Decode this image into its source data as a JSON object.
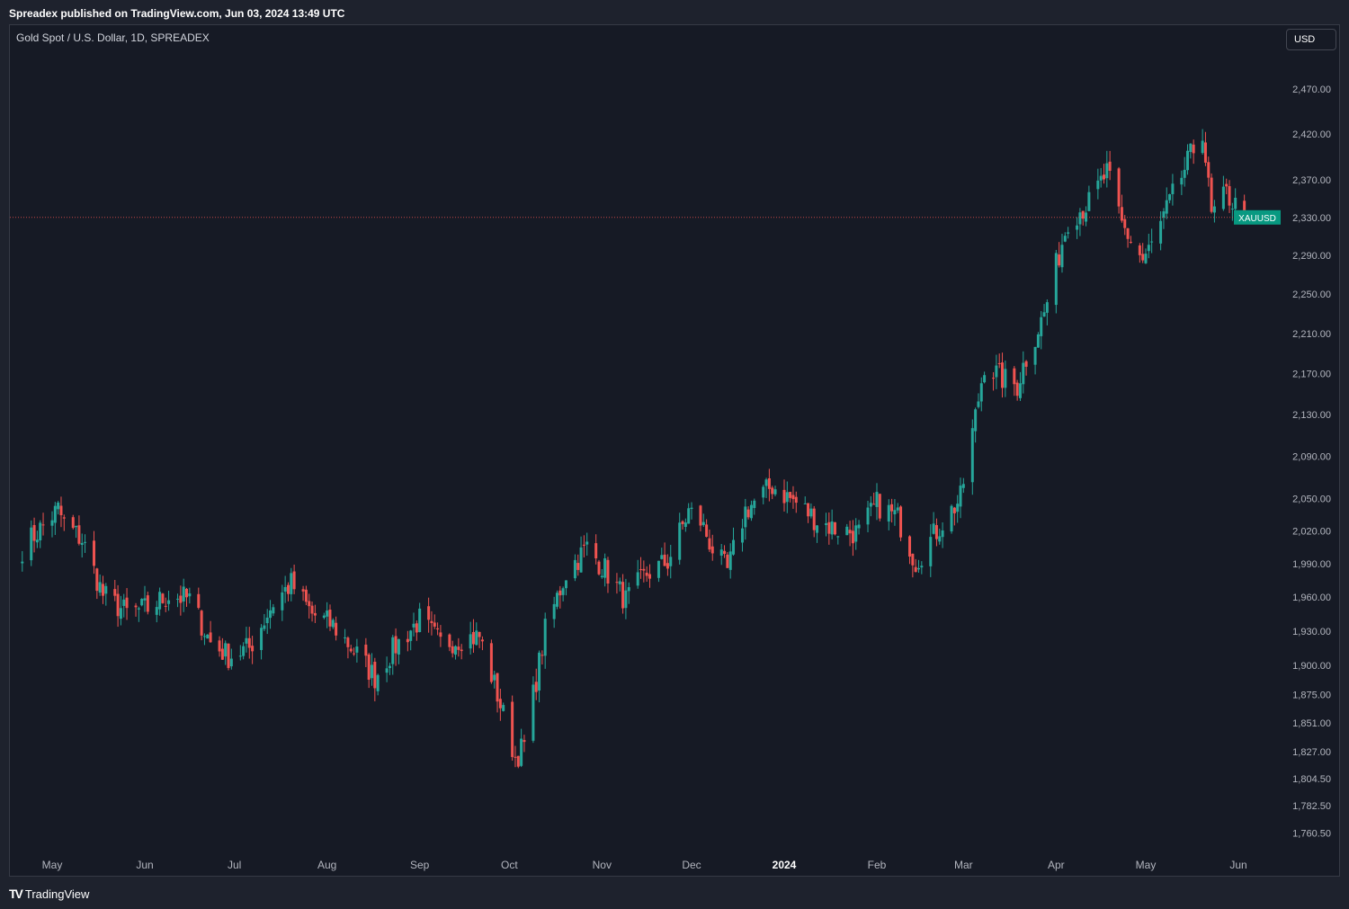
{
  "header": {
    "published_text": "Spreadex published on TradingView.com, Jun 03, 2024 13:49 UTC"
  },
  "symbol_title": "Gold Spot / U.S. Dollar, 1D, SPREADEX",
  "currency_button": "USD",
  "footer": {
    "logo_icon": "TV",
    "logo_text": "TradingView"
  },
  "colors": {
    "up": "#26a69a",
    "down": "#ef5350",
    "tag_bg": "#089981",
    "current_line": "#ef5350"
  },
  "chart_data": {
    "type": "candlestick",
    "symbol": "XAUUSD",
    "current_price": 2330,
    "y_scale": "log",
    "ylim": [
      1745,
      2510
    ],
    "y_ticks": [
      {
        "value": 2470,
        "label": "2,470.00"
      },
      {
        "value": 2420,
        "label": "2,420.00"
      },
      {
        "value": 2370,
        "label": "2,370.00"
      },
      {
        "value": 2330,
        "label": "2,330.00"
      },
      {
        "value": 2290,
        "label": "2,290.00"
      },
      {
        "value": 2250,
        "label": "2,250.00"
      },
      {
        "value": 2210,
        "label": "2,210.00"
      },
      {
        "value": 2170,
        "label": "2,170.00"
      },
      {
        "value": 2130,
        "label": "2,130.00"
      },
      {
        "value": 2090,
        "label": "2,090.00"
      },
      {
        "value": 2050,
        "label": "2,050.00"
      },
      {
        "value": 2020,
        "label": "2,020.00"
      },
      {
        "value": 1990,
        "label": "1,990.00"
      },
      {
        "value": 1960,
        "label": "1,960.00"
      },
      {
        "value": 1930,
        "label": "1,930.00"
      },
      {
        "value": 1900,
        "label": "1,900.00"
      },
      {
        "value": 1875,
        "label": "1,875.00"
      },
      {
        "value": 1851,
        "label": "1,851.00"
      },
      {
        "value": 1827,
        "label": "1,827.00"
      },
      {
        "value": 1804.5,
        "label": "1,804.50"
      },
      {
        "value": 1782.5,
        "label": "1,782.50"
      },
      {
        "value": 1760.5,
        "label": "1,760.50"
      }
    ],
    "x_labels": [
      {
        "label": "May",
        "date": "2023-05-01"
      },
      {
        "label": "Jun",
        "date": "2023-06-01"
      },
      {
        "label": "Jul",
        "date": "2023-07-01"
      },
      {
        "label": "Aug",
        "date": "2023-08-01"
      },
      {
        "label": "Sep",
        "date": "2023-09-01"
      },
      {
        "label": "Oct",
        "date": "2023-10-01"
      },
      {
        "label": "Nov",
        "date": "2023-11-01"
      },
      {
        "label": "Dec",
        "date": "2023-12-01"
      },
      {
        "label": "2024",
        "date": "2024-01-01",
        "bold": true
      },
      {
        "label": "Feb",
        "date": "2024-02-01"
      },
      {
        "label": "Mar",
        "date": "2024-03-01"
      },
      {
        "label": "Apr",
        "date": "2024-04-01"
      },
      {
        "label": "May",
        "date": "2024-05-01"
      },
      {
        "label": "Jun",
        "date": "2024-06-01"
      }
    ],
    "anchors": [
      [
        "2023-04-21",
        2004
      ],
      [
        "2023-05-03",
        2040
      ],
      [
        "2023-05-05",
        2027
      ],
      [
        "2023-05-11",
        2012
      ],
      [
        "2023-05-18",
        1962
      ],
      [
        "2023-05-26",
        1946
      ],
      [
        "2023-06-02",
        1950
      ],
      [
        "2023-06-09",
        1962
      ],
      [
        "2023-06-16",
        1958
      ],
      [
        "2023-06-23",
        1920
      ],
      [
        "2023-06-29",
        1908
      ],
      [
        "2023-07-06",
        1915
      ],
      [
        "2023-07-14",
        1955
      ],
      [
        "2023-07-20",
        1972
      ],
      [
        "2023-07-27",
        1945
      ],
      [
        "2023-08-03",
        1935
      ],
      [
        "2023-08-10",
        1913
      ],
      [
        "2023-08-17",
        1890
      ],
      [
        "2023-08-24",
        1917
      ],
      [
        "2023-09-01",
        1940
      ],
      [
        "2023-09-08",
        1919
      ],
      [
        "2023-09-15",
        1924
      ],
      [
        "2023-09-21",
        1925
      ],
      [
        "2023-09-27",
        1875
      ],
      [
        "2023-10-03",
        1822
      ],
      [
        "2023-10-06",
        1832
      ],
      [
        "2023-10-13",
        1930
      ],
      [
        "2023-10-20",
        1982
      ],
      [
        "2023-10-27",
        2005
      ],
      [
        "2023-11-02",
        1985
      ],
      [
        "2023-11-09",
        1957
      ],
      [
        "2023-11-16",
        1981
      ],
      [
        "2023-11-23",
        1992
      ],
      [
        "2023-11-30",
        2038
      ],
      [
        "2023-12-04",
        2029
      ],
      [
        "2023-12-08",
        2004
      ],
      [
        "2023-12-13",
        1983
      ],
      [
        "2023-12-19",
        2039
      ],
      [
        "2023-12-28",
        2062
      ],
      [
        "2024-01-05",
        2046
      ],
      [
        "2024-01-12",
        2030
      ],
      [
        "2024-01-18",
        2022
      ],
      [
        "2024-01-26",
        2018
      ],
      [
        "2024-02-01",
        2045
      ],
      [
        "2024-02-08",
        2032
      ],
      [
        "2024-02-14",
        1992
      ],
      [
        "2024-02-22",
        2024
      ],
      [
        "2024-02-29",
        2050
      ],
      [
        "2024-03-05",
        2128
      ],
      [
        "2024-03-08",
        2180
      ],
      [
        "2024-03-14",
        2165
      ],
      [
        "2024-03-19",
        2158
      ],
      [
        "2024-03-21",
        2178
      ],
      [
        "2024-03-28",
        2230
      ],
      [
        "2024-04-05",
        2328
      ],
      [
        "2024-04-12",
        2345
      ],
      [
        "2024-04-18",
        2378
      ],
      [
        "2024-04-23",
        2322
      ],
      [
        "2024-04-30",
        2285
      ],
      [
        "2024-05-03",
        2300
      ],
      [
        "2024-05-09",
        2345
      ],
      [
        "2024-05-20",
        2425
      ],
      [
        "2024-05-23",
        2330
      ],
      [
        "2024-05-28",
        2355
      ],
      [
        "2024-06-03",
        2330
      ]
    ]
  }
}
